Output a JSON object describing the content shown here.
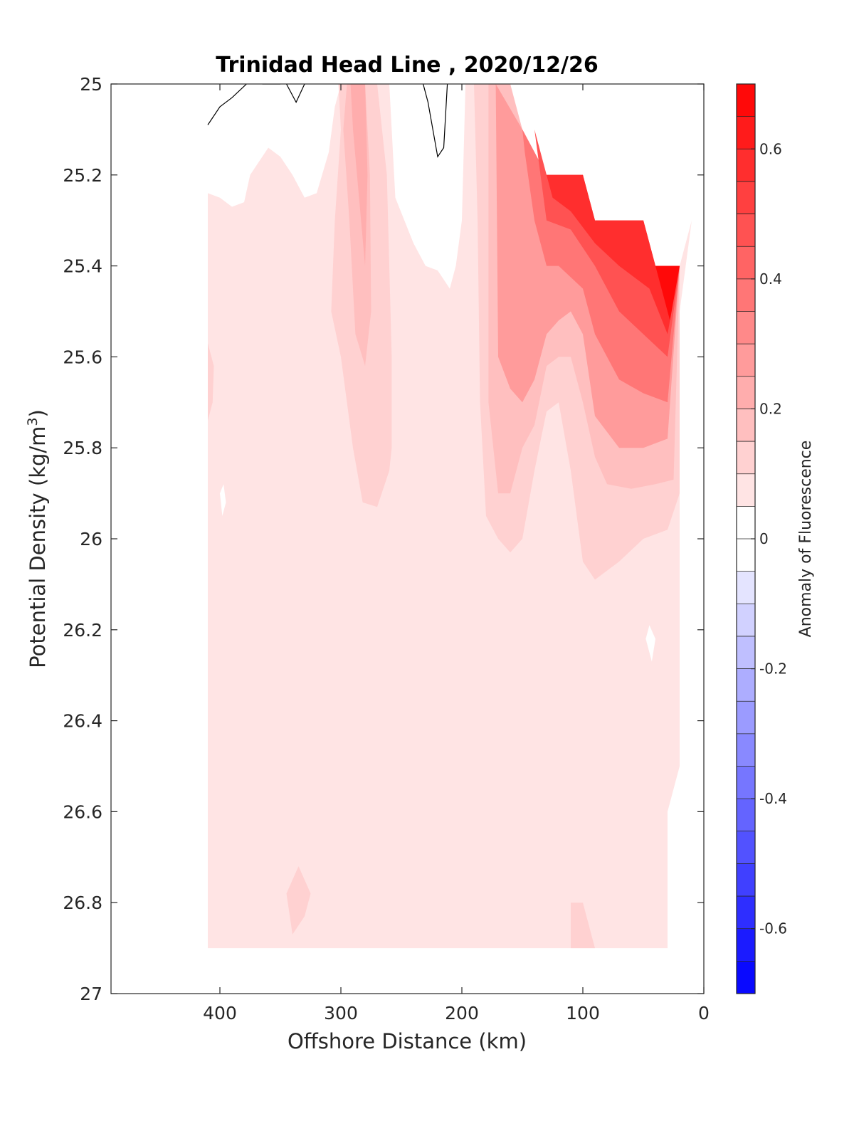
{
  "chart_data": {
    "type": "heatmap",
    "title": "Trinidad Head Line , 2020/12/26",
    "xlabel": "Offshore Distance (km)",
    "ylabel": "Potential Density (kg/m",
    "ylabel_superscript": "3",
    "ylabel_suffix": ")",
    "xlim": [
      490,
      0
    ],
    "ylim": [
      27,
      25
    ],
    "x_ticks": [
      400,
      300,
      200,
      100,
      0
    ],
    "y_ticks": [
      25,
      25.2,
      25.4,
      25.6,
      25.8,
      26,
      26.2,
      26.4,
      26.6,
      26.8,
      27
    ],
    "colorbar": {
      "label": "Anomaly of Fluorescence",
      "range": [
        -0.7,
        0.7
      ],
      "ticks": [
        -0.6,
        -0.4,
        -0.2,
        0,
        0.2,
        0.4,
        0.6
      ],
      "levels": 28,
      "low_color": "#0000ff",
      "mid_color": "#ffffff",
      "high_color": "#ff0000"
    },
    "data_extent": {
      "x": [
        410,
        10
      ],
      "y": [
        25.0,
        26.9
      ]
    },
    "field_regions": [
      {
        "name": "background",
        "value": 0.05,
        "polygon": [
          [
            410,
            25.24
          ],
          [
            400,
            25.25
          ],
          [
            390,
            25.27
          ],
          [
            380,
            25.26
          ],
          [
            375,
            25.2
          ],
          [
            360,
            25.14
          ],
          [
            350,
            25.16
          ],
          [
            340,
            25.2
          ],
          [
            330,
            25.25
          ],
          [
            320,
            25.24
          ],
          [
            310,
            25.15
          ],
          [
            305,
            25.05
          ],
          [
            300,
            25.0
          ],
          [
            260,
            25.0
          ],
          [
            255,
            25.25
          ],
          [
            240,
            25.35
          ],
          [
            230,
            25.4
          ],
          [
            220,
            25.41
          ],
          [
            210,
            25.45
          ],
          [
            205,
            25.4
          ],
          [
            200,
            25.3
          ],
          [
            197,
            25.0
          ],
          [
            180,
            25.0
          ],
          [
            150,
            25.1
          ],
          [
            130,
            25.2
          ],
          [
            100,
            25.2
          ],
          [
            90,
            25.3
          ],
          [
            50,
            25.3
          ],
          [
            40,
            25.4
          ],
          [
            20,
            25.4
          ],
          [
            10,
            25.3
          ],
          [
            20,
            25.5
          ],
          [
            20,
            26.2
          ],
          [
            20,
            26.5
          ],
          [
            30,
            26.6
          ],
          [
            30,
            26.9
          ],
          [
            410,
            26.9
          ]
        ]
      },
      {
        "name": "band-300-a",
        "value": 0.1,
        "polygon": [
          [
            302,
            25.0
          ],
          [
            270,
            25.0
          ],
          [
            262,
            25.2
          ],
          [
            260,
            25.4
          ],
          [
            258,
            25.6
          ],
          [
            258,
            25.8
          ],
          [
            260,
            25.85
          ],
          [
            270,
            25.93
          ],
          [
            282,
            25.92
          ],
          [
            290,
            25.8
          ],
          [
            300,
            25.6
          ],
          [
            308,
            25.5
          ],
          [
            305,
            25.3
          ],
          [
            300,
            25.1
          ]
        ]
      },
      {
        "name": "band-300-b",
        "value": 0.17,
        "polygon": [
          [
            295,
            25.0
          ],
          [
            280,
            25.0
          ],
          [
            276,
            25.2
          ],
          [
            275,
            25.5
          ],
          [
            280,
            25.62
          ],
          [
            288,
            25.55
          ],
          [
            293,
            25.3
          ],
          [
            298,
            25.1
          ]
        ]
      },
      {
        "name": "band-300-c",
        "value": 0.2,
        "polygon": [
          [
            292,
            25.0
          ],
          [
            280,
            25.0
          ],
          [
            278,
            25.2
          ],
          [
            280,
            25.4
          ],
          [
            285,
            25.25
          ],
          [
            290,
            25.1
          ]
        ]
      },
      {
        "name": "coastal-bloom-1",
        "value": 0.12,
        "polygon": [
          [
            190,
            25.0
          ],
          [
            175,
            25.0
          ],
          [
            150,
            25.1
          ],
          [
            130,
            25.2
          ],
          [
            100,
            25.2
          ],
          [
            90,
            25.3
          ],
          [
            50,
            25.3
          ],
          [
            40,
            25.4
          ],
          [
            20,
            25.4
          ],
          [
            20,
            25.9
          ],
          [
            30,
            25.98
          ],
          [
            50,
            26.0
          ],
          [
            70,
            26.05
          ],
          [
            90,
            26.09
          ],
          [
            100,
            26.05
          ],
          [
            110,
            25.85
          ],
          [
            120,
            25.7
          ],
          [
            130,
            25.72
          ],
          [
            140,
            25.85
          ],
          [
            150,
            26.0
          ],
          [
            160,
            26.03
          ],
          [
            170,
            26.0
          ],
          [
            180,
            25.95
          ],
          [
            185,
            25.7
          ],
          [
            187,
            25.3
          ]
        ]
      },
      {
        "name": "coastal-bloom-2",
        "value": 0.18,
        "polygon": [
          [
            178,
            25.0
          ],
          [
            160,
            25.0
          ],
          [
            150,
            25.1
          ],
          [
            130,
            25.2
          ],
          [
            100,
            25.2
          ],
          [
            90,
            25.3
          ],
          [
            50,
            25.3
          ],
          [
            40,
            25.4
          ],
          [
            20,
            25.4
          ],
          [
            25,
            25.87
          ],
          [
            40,
            25.88
          ],
          [
            60,
            25.89
          ],
          [
            80,
            25.88
          ],
          [
            90,
            25.82
          ],
          [
            100,
            25.7
          ],
          [
            110,
            25.6
          ],
          [
            120,
            25.6
          ],
          [
            130,
            25.62
          ],
          [
            140,
            25.75
          ],
          [
            150,
            25.8
          ],
          [
            160,
            25.9
          ],
          [
            170,
            25.9
          ],
          [
            178,
            25.7
          ]
        ]
      },
      {
        "name": "coastal-bloom-3",
        "value": 0.28,
        "polygon": [
          [
            172,
            25.0
          ],
          [
            150,
            25.1
          ],
          [
            130,
            25.2
          ],
          [
            100,
            25.2
          ],
          [
            90,
            25.3
          ],
          [
            50,
            25.3
          ],
          [
            40,
            25.4
          ],
          [
            20,
            25.4
          ],
          [
            30,
            25.78
          ],
          [
            50,
            25.8
          ],
          [
            70,
            25.8
          ],
          [
            90,
            25.73
          ],
          [
            100,
            25.55
          ],
          [
            110,
            25.5
          ],
          [
            120,
            25.52
          ],
          [
            130,
            25.55
          ],
          [
            140,
            25.65
          ],
          [
            150,
            25.7
          ],
          [
            160,
            25.67
          ],
          [
            170,
            25.6
          ]
        ]
      },
      {
        "name": "coastal-bloom-4",
        "value": 0.37,
        "polygon": [
          [
            150,
            25.1
          ],
          [
            130,
            25.2
          ],
          [
            100,
            25.2
          ],
          [
            90,
            25.3
          ],
          [
            50,
            25.3
          ],
          [
            40,
            25.4
          ],
          [
            20,
            25.4
          ],
          [
            30,
            25.7
          ],
          [
            50,
            25.68
          ],
          [
            70,
            25.65
          ],
          [
            90,
            25.55
          ],
          [
            100,
            25.45
          ],
          [
            120,
            25.4
          ],
          [
            130,
            25.4
          ],
          [
            140,
            25.3
          ],
          [
            148,
            25.15
          ]
        ]
      },
      {
        "name": "coastal-bloom-5",
        "value": 0.47,
        "polygon": [
          [
            140,
            25.1
          ],
          [
            130,
            25.2
          ],
          [
            100,
            25.2
          ],
          [
            90,
            25.3
          ],
          [
            50,
            25.3
          ],
          [
            40,
            25.4
          ],
          [
            20,
            25.4
          ],
          [
            30,
            25.6
          ],
          [
            50,
            25.55
          ],
          [
            70,
            25.5
          ],
          [
            90,
            25.4
          ],
          [
            110,
            25.32
          ],
          [
            130,
            25.3
          ]
        ]
      },
      {
        "name": "coastal-bloom-6",
        "value": 0.58,
        "polygon": [
          [
            130,
            25.2
          ],
          [
            100,
            25.2
          ],
          [
            90,
            25.3
          ],
          [
            50,
            25.3
          ],
          [
            40,
            25.4
          ],
          [
            20,
            25.4
          ],
          [
            30,
            25.55
          ],
          [
            45,
            25.45
          ],
          [
            70,
            25.4
          ],
          [
            90,
            25.35
          ],
          [
            110,
            25.28
          ],
          [
            125,
            25.25
          ]
        ]
      },
      {
        "name": "coastal-bloom-7",
        "value": 0.66,
        "polygon": [
          [
            40,
            25.4
          ],
          [
            20,
            25.4
          ],
          [
            28,
            25.52
          ],
          [
            35,
            25.45
          ]
        ]
      },
      {
        "name": "patch-330",
        "value": 0.1,
        "polygon": [
          [
            335,
            26.72
          ],
          [
            345,
            26.78
          ],
          [
            340,
            26.87
          ],
          [
            330,
            26.83
          ],
          [
            325,
            26.78
          ]
        ]
      },
      {
        "name": "patch-410",
        "value": 0.1,
        "polygon": [
          [
            410,
            25.57
          ],
          [
            405,
            25.62
          ],
          [
            406,
            25.7
          ],
          [
            410,
            25.74
          ]
        ]
      },
      {
        "name": "patch-80",
        "value": 0.1,
        "polygon": [
          [
            100,
            26.8
          ],
          [
            110,
            26.8
          ],
          [
            110,
            26.9
          ],
          [
            90,
            26.9
          ]
        ]
      }
    ],
    "zero_contours": [
      [
        [
          410,
          25.09
        ],
        [
          400,
          25.05
        ],
        [
          390,
          25.03
        ],
        [
          378,
          25.0
        ]
      ],
      [
        [
          365,
          25.0
        ],
        [
          362,
          25.0
        ],
        [
          358,
          25.0
        ],
        [
          350,
          25.0
        ]
      ],
      [
        [
          345,
          25.0
        ],
        [
          337,
          25.04
        ],
        [
          330,
          25.0
        ]
      ],
      [
        [
          232,
          25.0
        ],
        [
          228,
          25.04
        ],
        [
          220,
          25.16
        ],
        [
          215,
          25.14
        ],
        [
          212,
          25.0
        ]
      ]
    ],
    "white_holes": [
      [
        [
          400,
          25.9
        ],
        [
          398,
          25.95
        ],
        [
          395,
          25.92
        ],
        [
          397,
          25.88
        ]
      ],
      [
        [
          45,
          26.19
        ],
        [
          40,
          26.22
        ],
        [
          43,
          26.27
        ],
        [
          48,
          26.22
        ]
      ]
    ]
  }
}
